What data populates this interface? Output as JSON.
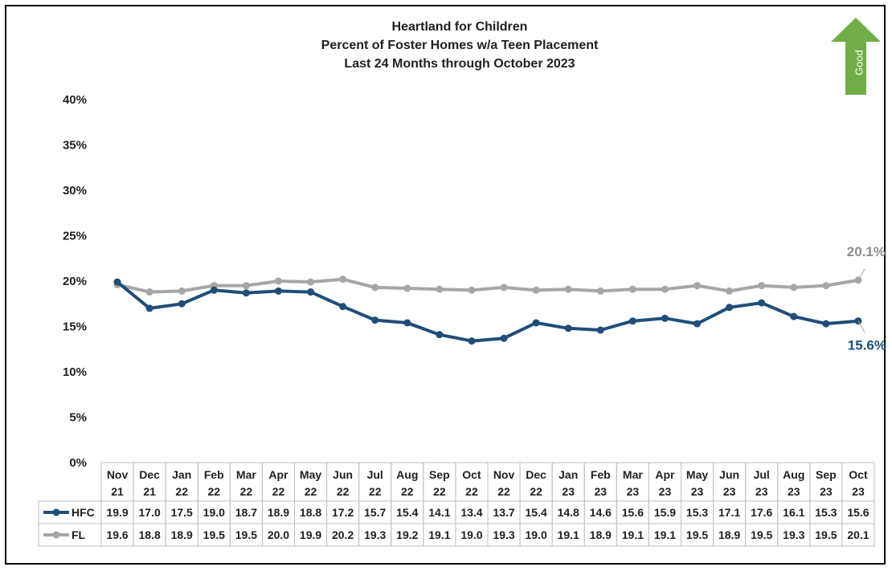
{
  "chart_data": {
    "type": "line",
    "title": [
      "Heartland for Children",
      "Percent of Foster Homes w/a Teen Placement",
      "Last 24 Months through October 2023"
    ],
    "categories": [
      [
        "Nov",
        "21"
      ],
      [
        "Dec",
        "21"
      ],
      [
        "Jan",
        "22"
      ],
      [
        "Feb",
        "22"
      ],
      [
        "Mar",
        "22"
      ],
      [
        "Apr",
        "22"
      ],
      [
        "May",
        "22"
      ],
      [
        "Jun",
        "22"
      ],
      [
        "Jul",
        "22"
      ],
      [
        "Aug",
        "22"
      ],
      [
        "Sep",
        "22"
      ],
      [
        "Oct",
        "22"
      ],
      [
        "Nov",
        "22"
      ],
      [
        "Dec",
        "22"
      ],
      [
        "Jan",
        "23"
      ],
      [
        "Feb",
        "23"
      ],
      [
        "Mar",
        "23"
      ],
      [
        "Apr",
        "23"
      ],
      [
        "May",
        "23"
      ],
      [
        "Jun",
        "23"
      ],
      [
        "Jul",
        "23"
      ],
      [
        "Aug",
        "23"
      ],
      [
        "Sep",
        "23"
      ],
      [
        "Oct",
        "23"
      ]
    ],
    "series": [
      {
        "name": "HFC",
        "color": "#1f4e79",
        "values": [
          19.9,
          17.0,
          17.5,
          19.0,
          18.7,
          18.9,
          18.8,
          17.2,
          15.7,
          15.4,
          14.1,
          13.4,
          13.7,
          15.4,
          14.8,
          14.6,
          15.6,
          15.9,
          15.3,
          17.1,
          17.6,
          16.1,
          15.3,
          15.6
        ],
        "end_label": "15.6%"
      },
      {
        "name": "FL",
        "color": "#a6a6a6",
        "values": [
          19.6,
          18.8,
          18.9,
          19.5,
          19.5,
          20.0,
          19.9,
          20.2,
          19.3,
          19.2,
          19.1,
          19.0,
          19.3,
          19.0,
          19.1,
          18.9,
          19.1,
          19.1,
          19.5,
          18.9,
          19.5,
          19.3,
          19.5,
          20.1
        ],
        "end_label": "20.1%"
      }
    ],
    "y_ticks": [
      "0%",
      "5%",
      "10%",
      "15%",
      "20%",
      "25%",
      "30%",
      "35%",
      "40%"
    ],
    "ylim": [
      0,
      40
    ],
    "grid": false,
    "data_table": true,
    "indicator": {
      "label": "Good",
      "direction": "up",
      "color": "#70ad47"
    }
  }
}
